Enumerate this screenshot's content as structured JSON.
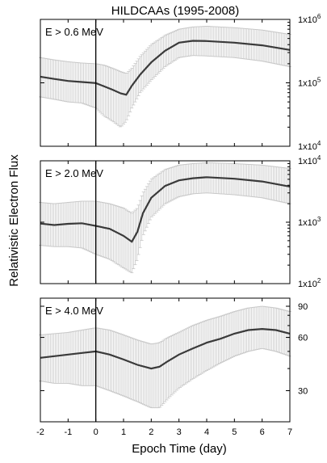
{
  "figure": {
    "title": "HILDCAAs (1995-2008)",
    "ylabel": "Relativistic Electron Flux",
    "xlabel": "Epoch Time (day)"
  },
  "chart_data": [
    {
      "type": "line",
      "annotation": "E > 0.6 MeV",
      "y_scale": "log",
      "xlim": [
        -2,
        7
      ],
      "ylim": [
        10000,
        1000000
      ],
      "x_ticks": [
        -2,
        -1,
        0,
        1,
        2,
        3,
        4,
        5,
        6,
        7
      ],
      "y_ticks": [
        {
          "value": 10000,
          "base": "1x10",
          "exp": "4"
        },
        {
          "value": 100000,
          "base": "1x10",
          "exp": "5"
        },
        {
          "value": 1000000,
          "base": "1x10",
          "exp": "6"
        }
      ],
      "epoch_marker": 0,
      "series": [
        {
          "x": [
            -2,
            -1.5,
            -1,
            -0.5,
            0,
            0.3,
            0.6,
            0.9,
            1.1,
            1.3,
            1.6,
            2,
            2.5,
            3,
            3.5,
            4,
            5,
            6,
            7
          ],
          "y": [
            125000,
            115000,
            107000,
            103000,
            99000,
            88000,
            78000,
            68000,
            65000,
            90000,
            135000,
            210000,
            320000,
            430000,
            460000,
            455000,
            430000,
            390000,
            330000
          ],
          "low": [
            60000,
            55000,
            50000,
            48000,
            40000,
            30000,
            25000,
            20000,
            25000,
            40000,
            70000,
            110000,
            180000,
            250000,
            270000,
            265000,
            250000,
            220000,
            180000
          ],
          "high": [
            250000,
            230000,
            215000,
            205000,
            200000,
            190000,
            170000,
            150000,
            140000,
            170000,
            260000,
            400000,
            560000,
            700000,
            760000,
            780000,
            740000,
            680000,
            580000
          ]
        }
      ]
    },
    {
      "type": "line",
      "annotation": "E > 2.0 MeV",
      "y_scale": "log",
      "xlim": [
        -2,
        7
      ],
      "ylim": [
        100,
        10000
      ],
      "x_ticks": [
        -2,
        -1,
        0,
        1,
        2,
        3,
        4,
        5,
        6,
        7
      ],
      "y_ticks": [
        {
          "value": 100,
          "base": "1x10",
          "exp": "2"
        },
        {
          "value": 1000,
          "base": "1x10",
          "exp": "3"
        },
        {
          "value": 10000,
          "base": "1x10",
          "exp": "4"
        }
      ],
      "epoch_marker": 0,
      "series": [
        {
          "x": [
            -2,
            -1.5,
            -1,
            -0.5,
            0,
            0.5,
            1,
            1.3,
            1.5,
            1.7,
            2,
            2.5,
            3,
            3.5,
            4,
            5,
            6,
            7
          ],
          "y": [
            950,
            900,
            940,
            960,
            870,
            780,
            600,
            480,
            700,
            1400,
            2500,
            3900,
            4800,
            5200,
            5400,
            5100,
            4600,
            3800
          ],
          "low": [
            420,
            400,
            400,
            380,
            300,
            250,
            180,
            150,
            250,
            600,
            1200,
            2000,
            2600,
            2900,
            3000,
            2800,
            2500,
            2000
          ],
          "high": [
            2100,
            2000,
            2100,
            2200,
            2200,
            2000,
            1700,
            1400,
            1700,
            3000,
            5000,
            7200,
            8500,
            9000,
            9300,
            9000,
            8500,
            7500
          ]
        }
      ]
    },
    {
      "type": "line",
      "annotation": "E > 4.0 MeV",
      "y_scale": "log",
      "xlim": [
        -2,
        7
      ],
      "ylim": [
        20,
        100
      ],
      "x_ticks": [
        -2,
        -1,
        0,
        1,
        2,
        3,
        4,
        5,
        6,
        7
      ],
      "y_ticks": [
        {
          "value": 30,
          "base": "30",
          "exp": ""
        },
        {
          "value": 60,
          "base": "60",
          "exp": ""
        },
        {
          "value": 90,
          "base": "90",
          "exp": ""
        }
      ],
      "epoch_marker": 0,
      "series": [
        {
          "x": [
            -2,
            -1.5,
            -1,
            -0.5,
            0,
            0.5,
            1,
            1.5,
            2,
            2.3,
            2.6,
            3,
            3.5,
            4,
            4.5,
            5,
            5.5,
            6,
            6.5,
            7
          ],
          "y": [
            46,
            47,
            48,
            49,
            50,
            48,
            45,
            42,
            40,
            41,
            44,
            48,
            52,
            56,
            59,
            63,
            66,
            67,
            66,
            63
          ],
          "low": [
            34,
            33,
            33,
            32,
            32,
            30,
            28,
            26,
            24,
            24,
            27,
            31,
            35,
            39,
            43,
            47,
            50,
            52,
            50,
            47
          ],
          "high": [
            62,
            63,
            64,
            66,
            68,
            66,
            62,
            58,
            55,
            56,
            60,
            64,
            70,
            75,
            79,
            84,
            88,
            90,
            88,
            84
          ]
        }
      ]
    }
  ]
}
